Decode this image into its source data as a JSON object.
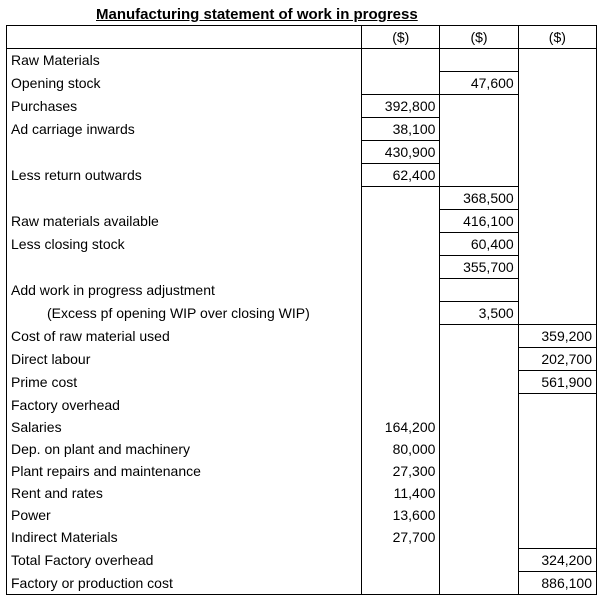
{
  "title": "Manufacturing statement of work in progress",
  "header": {
    "c1": "($)",
    "c2": "($)",
    "c3": "($)"
  },
  "rows": {
    "raw_materials": "Raw Materials",
    "opening_stock": {
      "label": "Opening stock",
      "c2": "47,600"
    },
    "purchases": {
      "label": "Purchases",
      "c1": "392,800"
    },
    "ad_carriage": {
      "label": "Ad carriage inwards",
      "c1": "38,100"
    },
    "subtotal1": {
      "c1": "430,900"
    },
    "less_return": {
      "label": "Less return outwards",
      "c1": "62,400"
    },
    "subtotal2": {
      "c2": "368,500"
    },
    "rm_available": {
      "label": "Raw materials available",
      "c2": "416,100"
    },
    "less_closing": {
      "label": "Less closing stock",
      "c2": "60,400"
    },
    "subtotal3": {
      "c2": "355,700"
    },
    "add_wip": "Add work in progress adjustment",
    "wip_excess": {
      "label": "(Excess pf opening WIP over closing WIP)",
      "c2": "3,500"
    },
    "cost_rm_used": {
      "label": "Cost of raw material used",
      "c3": "359,200"
    },
    "direct_labour": {
      "label": "Direct labour",
      "c3": "202,700"
    },
    "prime_cost": {
      "label": "Prime cost",
      "c3": "561,900"
    },
    "factory_oh": "Factory overhead",
    "salaries": {
      "label": "Salaries",
      "c1": "164,200"
    },
    "dep": {
      "label": "Dep. on plant and machinery",
      "c1": "80,000"
    },
    "repairs": {
      "label": "Plant repairs and maintenance",
      "c1": "27,300"
    },
    "rent": {
      "label": "Rent and rates",
      "c1": "11,400"
    },
    "power": {
      "label": "Power",
      "c1": "13,600"
    },
    "indirect": {
      "label": "Indirect Materials",
      "c1": "27,700"
    },
    "total_foh": {
      "label": "Total Factory overhead",
      "c3": "324,200"
    },
    "factory_cost": {
      "label": "Factory or production cost",
      "c3": "886,100"
    }
  }
}
